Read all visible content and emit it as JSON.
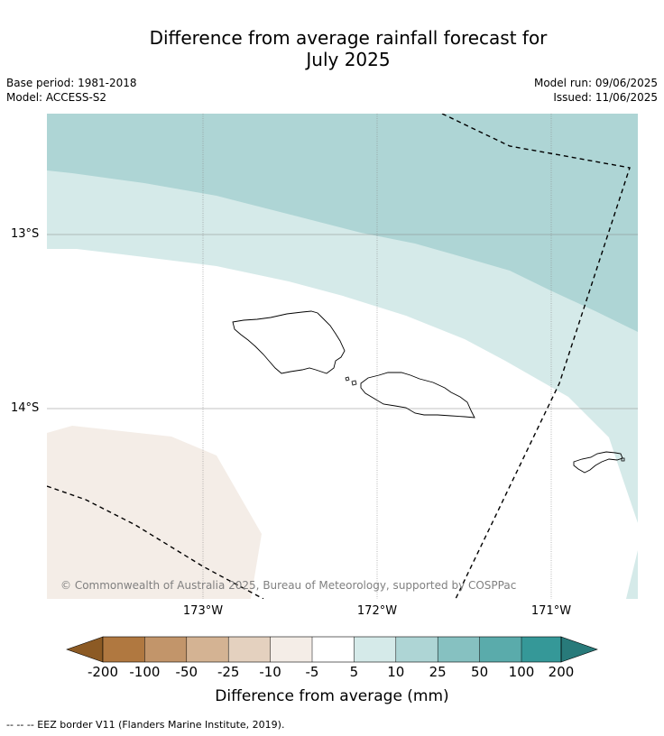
{
  "title": {
    "line1": "Difference from average rainfall forecast for",
    "line2": "July 2025"
  },
  "meta": {
    "base_period": "Base period: 1981-2018",
    "model": "Model: ACCESS-S2",
    "model_run": "Model run: 09/06/2025",
    "issued": "Issued: 11/06/2025"
  },
  "map": {
    "lat_labels": [
      "13°S",
      "14°S"
    ],
    "lon_labels": [
      "173°W",
      "172°W",
      "171°W"
    ],
    "copyright": "© Commonwealth of Australia 2025, Bureau of Meteorology, supported by COSPPac"
  },
  "colorbar": {
    "labels": [
      "-200",
      "-100",
      "-50",
      "-25",
      "-10",
      "-5",
      "5",
      "10",
      "25",
      "50",
      "100",
      "200"
    ],
    "colors": [
      "#8c5a24",
      "#b07840",
      "#c2956a",
      "#d4b393",
      "#e4d1bf",
      "#f4ede7",
      "#ffffff",
      "#d5eae9",
      "#aed5d5",
      "#86c1c1",
      "#5aabab",
      "#359898",
      "#287a7a"
    ],
    "title": "Difference from average (mm)"
  },
  "legend": {
    "eez": "--  --  -- EEZ border V11 (Flanders Marine Institute, 2019)."
  }
}
